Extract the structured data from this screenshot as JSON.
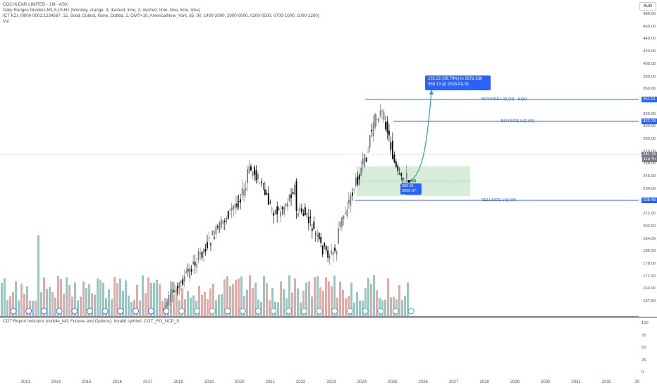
{
  "legend": {
    "title": "COCHLEAR LIMITED · 1M · ASX",
    "indicator_1": "Daily Ranges Dividers M1,5,15,H1 (Monday, orange, 4, dashed, lime, 2, dashed, lime, lime, lime, lime)",
    "indicator_2": "ICT KZs (0000-0001:1234567, 15, Solid, Dotted, None, Dotted, 2, GMT+10, America/New_York, 85, 90, 1400-2000, 2000-0000, 0200-0500, 0700-1000, 1000-1200)",
    "indicator_3": "Vol"
  },
  "cot_label": "COT Report Indicator (middle_left, Futures and Options): Invalid symbol: COT:_FO_NCP_S",
  "currency": "AUD",
  "price_ticks": [
    "480.00",
    "460.00",
    "440.00",
    "420.00",
    "400.00",
    "380.00",
    "360.00",
    "340.00",
    "320.00",
    "300.00",
    "280.00",
    "270.00",
    "258.00",
    "246.00",
    "234.00",
    "222.00",
    "212.00",
    "202.00",
    "194.00",
    "186.00",
    "178.00",
    "171.00",
    "164.00",
    "157.50"
  ],
  "osc_ticks": [
    "100",
    "75",
    "50",
    "25",
    "0"
  ],
  "time_ticks": [
    "2013",
    "2014",
    "2015",
    "2016",
    "2017",
    "2018",
    "2019",
    "2020",
    "2021",
    "2022",
    "2023",
    "2024",
    "2025",
    "2026",
    "2027",
    "2028",
    "2029",
    "2030",
    "2031",
    "2032",
    "20"
  ],
  "price_labels": {
    "eqh": "351.51",
    "bsl": "322.78",
    "last_price": "281.78",
    "countdown": "11d 7h",
    "ssl": "238.48"
  },
  "line_labels": {
    "eqh": "BUYSIDE LIQ (M) - EQH",
    "bsl": "BUYSIDE LIQ (M)",
    "ssl": "SELLSIDE LIQ (M)"
  },
  "projection": {
    "line1": "102.22 (39.79%) in 267d 23h",
    "line2": "359.13 @ 2026-03-31"
  },
  "low_box": {
    "price": "256.91",
    "date": "2025-07-01"
  },
  "m_label": "(M)",
  "colors": {
    "accent": "#2962ff",
    "up": "#787b86",
    "down": "#000000",
    "vol_up": "#26a69a",
    "vol_down": "#ef5350",
    "zone": "#c8e6c9"
  }
}
